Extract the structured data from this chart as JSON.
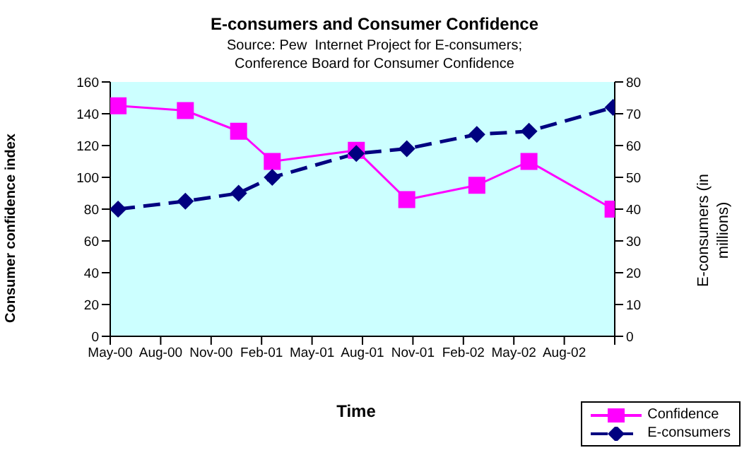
{
  "chart_data": {
    "type": "line",
    "title": "E-consumers and Consumer Confidence",
    "subtitle": "Source: Pew  Internet Project for E-consumers;\nConference Board for Consumer Confidence",
    "xlabel": "Time",
    "ylabel": "Consumer confidence index",
    "y2label": "E-consumers (in millions)",
    "x": [
      "2000-05-15",
      "2000-09-15",
      "2000-12-20",
      "2001-02-20",
      "2001-07-20",
      "2001-10-20",
      "2002-02-25",
      "2002-05-28",
      "2002-10-28"
    ],
    "series": [
      {
        "name": "Confidence",
        "color": "#ff00ff",
        "values": [
          145,
          142,
          129,
          110,
          117,
          86,
          95,
          110,
          80
        ],
        "marker": "square",
        "line_style": "solid"
      },
      {
        "name": "E-consumers",
        "color": "#000080",
        "values": [
          40,
          42.5,
          45,
          50,
          57.5,
          59,
          63.5,
          64.5,
          72
        ],
        "axis": "y2",
        "marker": "diamond",
        "line_style": "dashed"
      }
    ],
    "xlim": [
      "2000-05",
      "2002-11"
    ],
    "xticks": [
      {
        "value": "2000-05",
        "label": "May-00"
      },
      {
        "value": "2000-08",
        "label": "Aug-00"
      },
      {
        "value": "2000-11",
        "label": "Nov-00"
      },
      {
        "value": "2001-02",
        "label": "Feb-01"
      },
      {
        "value": "2001-05",
        "label": "May-01"
      },
      {
        "value": "2001-08",
        "label": "Aug-01"
      },
      {
        "value": "2001-11",
        "label": "Nov-01"
      },
      {
        "value": "2002-02",
        "label": "Feb-02"
      },
      {
        "value": "2002-05",
        "label": "May-02"
      },
      {
        "value": "2002-08",
        "label": "Aug-02"
      },
      {
        "value": "2002-11",
        "label": null
      }
    ],
    "ylim": [
      0,
      160
    ],
    "yticks": [
      0,
      20,
      40,
      60,
      80,
      100,
      120,
      140,
      160
    ],
    "y2lim": [
      0,
      80
    ],
    "y2ticks": [
      0,
      10,
      20,
      30,
      40,
      50,
      60,
      70,
      80
    ],
    "grid": false,
    "legend": "bottom right"
  }
}
